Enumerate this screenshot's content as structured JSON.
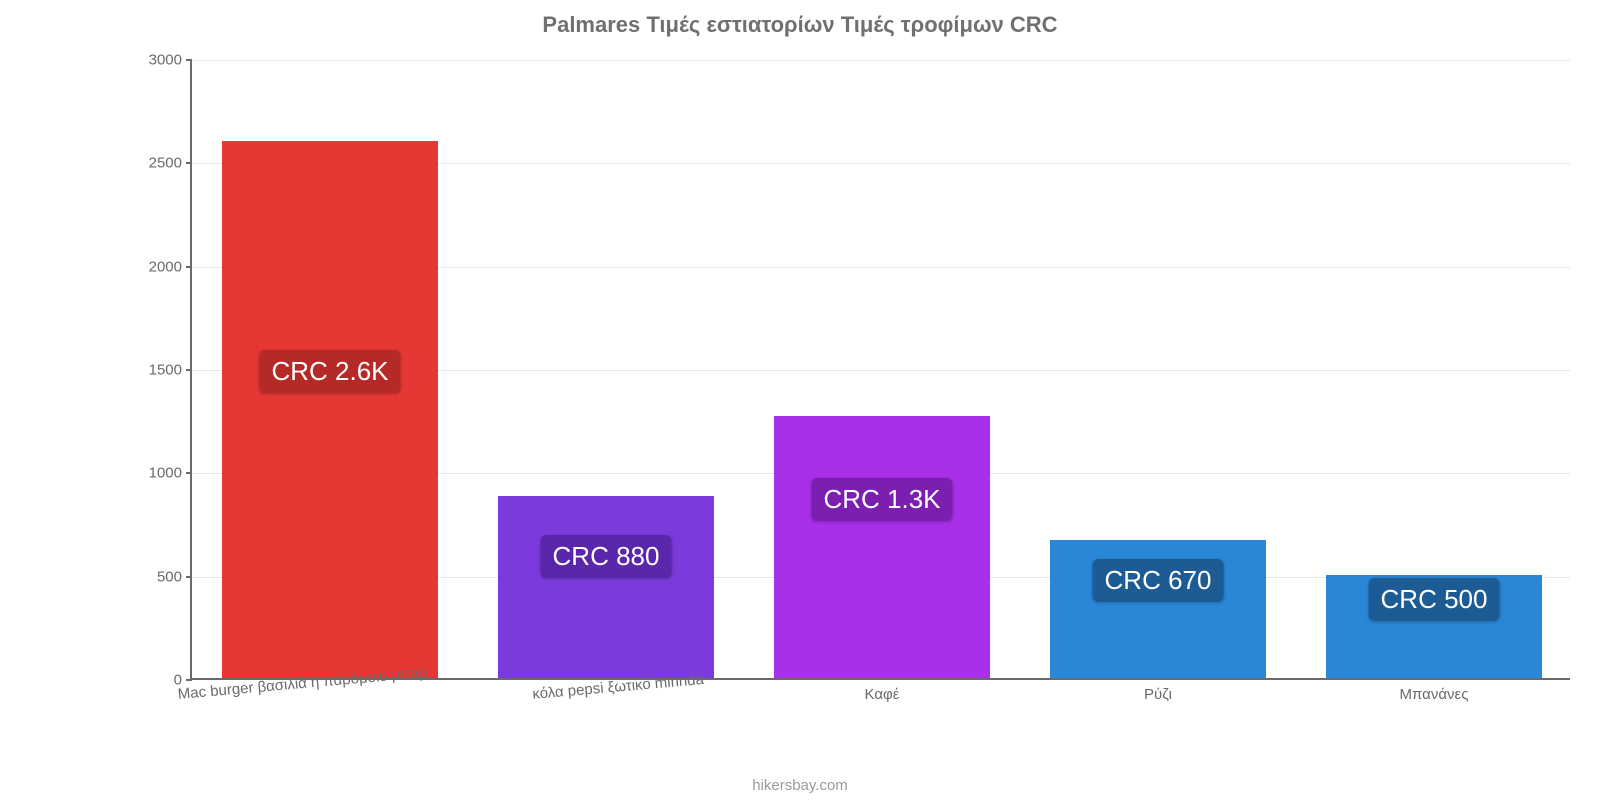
{
  "chart": {
    "type": "bar",
    "title": "Palmares Τιμές εστιατορίων Τιμές τροφίμων CRC",
    "title_color": "#707070",
    "title_fontsize": 22,
    "background_color": "#ffffff",
    "axis_color": "#6a6a6a",
    "grid_color": "#e6e6e6",
    "ylim_min": 0,
    "ylim_max": 3000,
    "ytick_step": 500,
    "yticks": [
      {
        "value": 0,
        "label": "0"
      },
      {
        "value": 500,
        "label": "500"
      },
      {
        "value": 1000,
        "label": "1000"
      },
      {
        "value": 1500,
        "label": "1500"
      },
      {
        "value": 2000,
        "label": "2000"
      },
      {
        "value": 2500,
        "label": "2500"
      },
      {
        "value": 3000,
        "label": "3000"
      }
    ],
    "tick_label_color": "#6a6a6a",
    "tick_label_fontsize": 15,
    "bars": [
      {
        "category": "Mac burger βασιλιά ή παρόμοιο μπαρ",
        "value": 2600,
        "value_label": "CRC 2.6K",
        "color": "#e53734",
        "badge_color": "#b52a27",
        "rot": true
      },
      {
        "category": "κόλα pepsi ξωτικό mirinda",
        "value": 880,
        "value_label": "CRC 880",
        "color": "#7b3bdc",
        "badge_color": "#5a26ab",
        "rot": true
      },
      {
        "category": "Καφέ",
        "value": 1270,
        "value_label": "CRC 1.3K",
        "color": "#a830e8",
        "badge_color": "#7c1fb1",
        "rot": false
      },
      {
        "category": "Ρύζι",
        "value": 670,
        "value_label": "CRC 670",
        "color": "#2a87d7",
        "badge_color": "#1c5b93",
        "rot": false
      },
      {
        "category": "Μπανάνες",
        "value": 500,
        "value_label": "CRC 500",
        "color": "#2a87d7",
        "badge_color": "#1c5b93",
        "rot": false
      }
    ],
    "bar_width_ratio": 0.78,
    "value_label_fontsize": 26,
    "x_label_fontsize": 15,
    "x_label_color": "#6a6a6a",
    "attribution": "hikersbay.com",
    "attribution_color": "#9a9a9a",
    "attribution_fontsize": 15
  }
}
